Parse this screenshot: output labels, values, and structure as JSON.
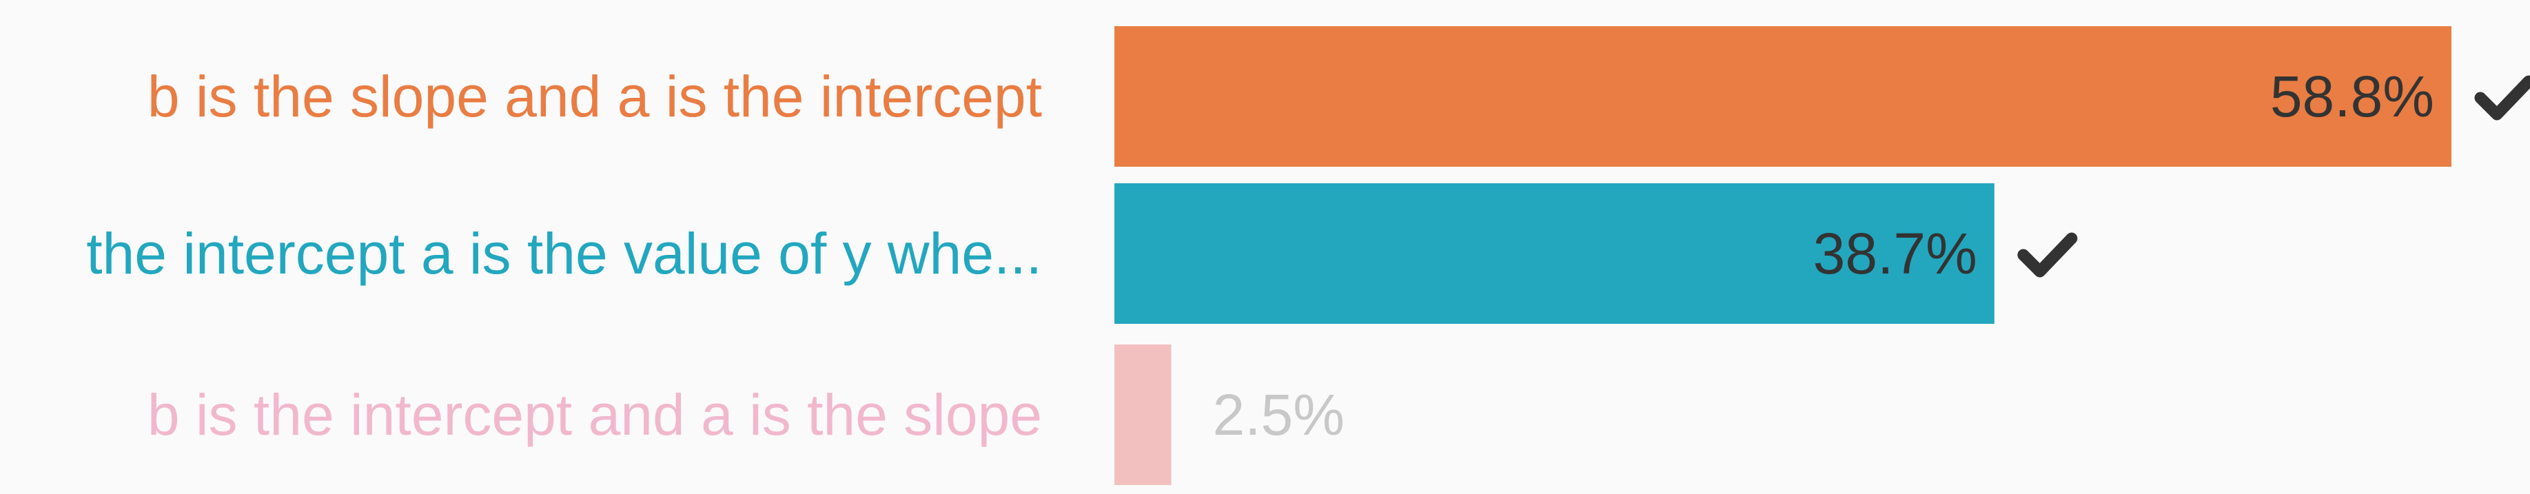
{
  "chart_data": {
    "type": "bar",
    "orientation": "horizontal",
    "categories": [
      "b is the slope and a is the intercept",
      "the intercept a is the value of y whe...",
      "b is the intercept and a is the slope"
    ],
    "values": [
      58.8,
      38.7,
      2.5
    ],
    "value_labels": [
      "58.8%",
      "38.7%",
      "2.5%"
    ],
    "correct": [
      true,
      true,
      false
    ],
    "xlim": [
      0,
      60
    ],
    "grid": false,
    "colors": [
      "#e97d43",
      "#22a7bf",
      "#f2c0bf"
    ],
    "label_colors": [
      "#e97d43",
      "#22a7bf",
      "#f1b8cd"
    ],
    "value_label_colors": [
      "#333333",
      "#333333",
      "#c8c8c8"
    ],
    "check_color": "#333333",
    "check_icon": "check-icon"
  }
}
